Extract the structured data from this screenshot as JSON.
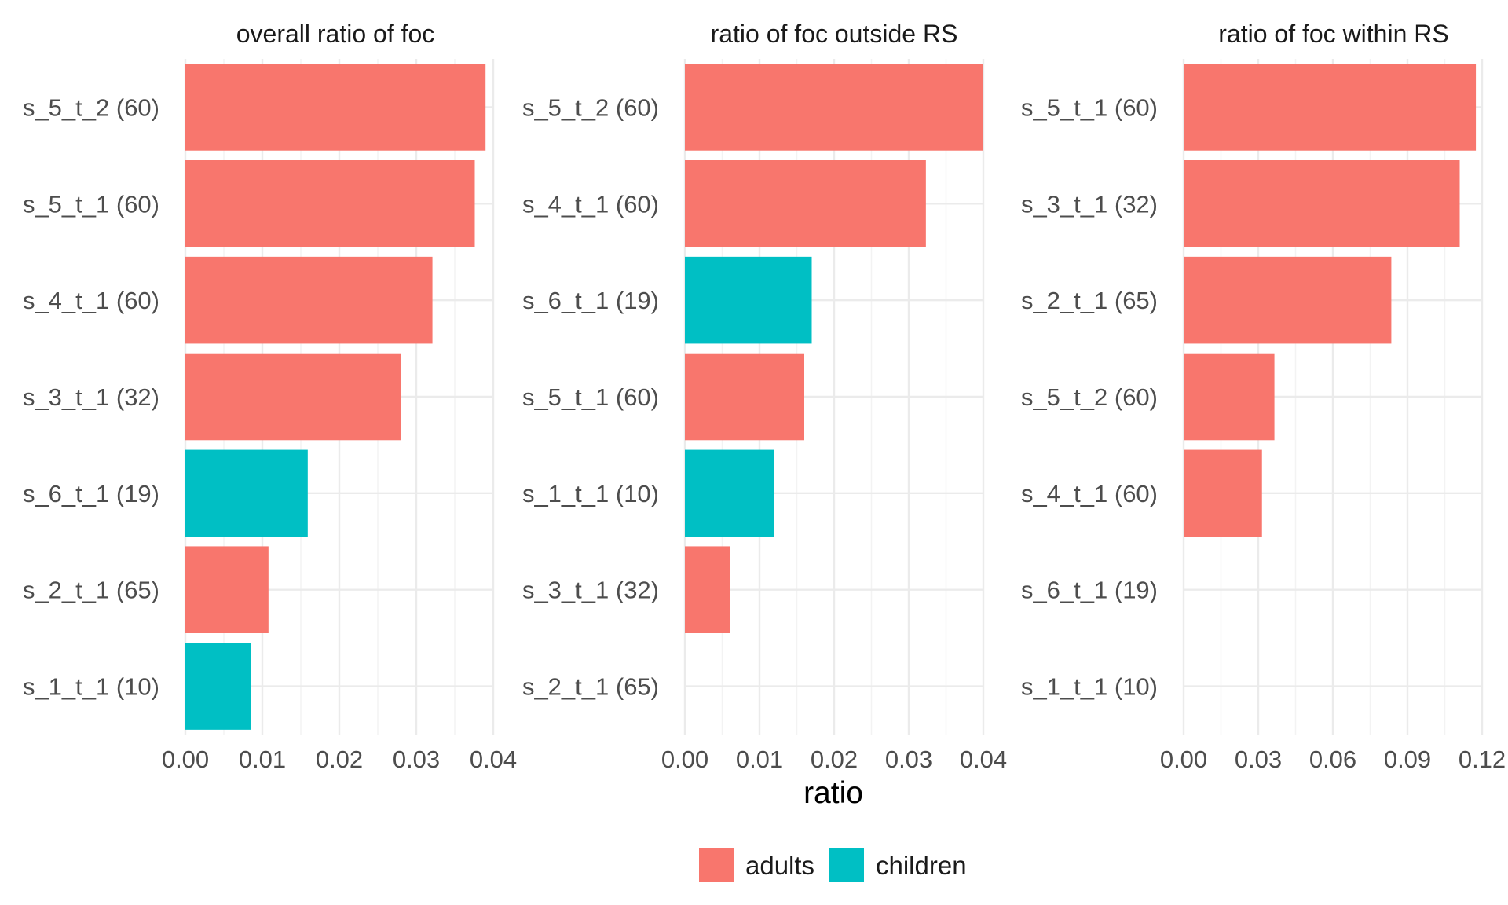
{
  "chart_data": {
    "type": "bar",
    "orientation": "horizontal",
    "xlabel": "ratio",
    "ylabel": "",
    "legend": {
      "position": "bottom",
      "entries": [
        {
          "name": "adults",
          "color": "#F8766D"
        },
        {
          "name": "children",
          "color": "#00BFC4"
        }
      ]
    },
    "grid": true,
    "panels": [
      {
        "title": "overall ratio of foc",
        "xlim": [
          0,
          0.04
        ],
        "xticks": [
          "0.00",
          "0.01",
          "0.02",
          "0.03",
          "0.04"
        ],
        "categories": [
          "s_5_t_2 (60)",
          "s_5_t_1 (60)",
          "s_4_t_1 (60)",
          "s_3_t_1 (32)",
          "s_6_t_1 (19)",
          "s_2_t_1 (65)",
          "s_1_t_1 (10)"
        ],
        "values": [
          0.039,
          0.0376,
          0.0321,
          0.028,
          0.0159,
          0.0108,
          0.0085
        ],
        "groups": [
          "adults",
          "adults",
          "adults",
          "adults",
          "children",
          "adults",
          "children"
        ]
      },
      {
        "title": "ratio of foc outside RS",
        "xlim": [
          0,
          0.04
        ],
        "xticks": [
          "0.00",
          "0.01",
          "0.02",
          "0.03",
          "0.04"
        ],
        "categories": [
          "s_5_t_2 (60)",
          "s_4_t_1 (60)",
          "s_6_t_1 (19)",
          "s_5_t_1 (60)",
          "s_1_t_1 (10)",
          "s_3_t_1 (32)",
          "s_2_t_1 (65)"
        ],
        "values": [
          0.04,
          0.0323,
          0.017,
          0.016,
          0.0119,
          0.006,
          0.0
        ],
        "groups": [
          "adults",
          "adults",
          "children",
          "adults",
          "children",
          "adults",
          "adults"
        ]
      },
      {
        "title": "ratio of foc within RS",
        "xlim": [
          0,
          0.12
        ],
        "xticks": [
          "0.00",
          "0.03",
          "0.06",
          "0.09",
          "0.12"
        ],
        "categories": [
          "s_5_t_1 (60)",
          "s_3_t_1 (32)",
          "s_2_t_1 (65)",
          "s_5_t_2 (60)",
          "s_4_t_1 (60)",
          "s_6_t_1 (19)",
          "s_1_t_1 (10)"
        ],
        "values": [
          0.1175,
          0.111,
          0.0835,
          0.0365,
          0.0315,
          0.0,
          0.0
        ],
        "groups": [
          "adults",
          "adults",
          "adults",
          "adults",
          "adults",
          "children",
          "children"
        ]
      }
    ]
  }
}
